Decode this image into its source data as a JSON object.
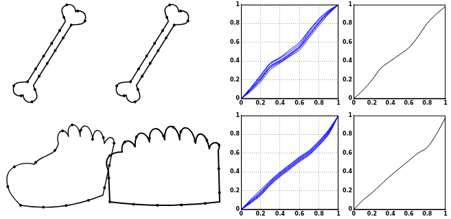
{
  "chart_data": [
    {
      "type": "line",
      "x": [
        0,
        0.1,
        0.2,
        0.3,
        0.4,
        0.5,
        0.6,
        0.7,
        0.8,
        0.9,
        1
      ],
      "series": [
        {
          "color": "#0000ff",
          "values": [
            0,
            0.1,
            0.22,
            0.35,
            0.41,
            0.48,
            0.56,
            0.7,
            0.82,
            0.92,
            1
          ]
        },
        {
          "color": "#0000ff",
          "values": [
            0,
            0.09,
            0.2,
            0.33,
            0.39,
            0.46,
            0.54,
            0.67,
            0.8,
            0.91,
            1
          ]
        },
        {
          "color": "#0000ff",
          "values": [
            0,
            0.11,
            0.24,
            0.37,
            0.43,
            0.5,
            0.58,
            0.72,
            0.84,
            0.93,
            1
          ]
        },
        {
          "color": "#0000ff",
          "values": [
            0,
            0.08,
            0.18,
            0.31,
            0.38,
            0.45,
            0.52,
            0.65,
            0.78,
            0.9,
            1
          ]
        },
        {
          "color": "#0000ff",
          "values": [
            0,
            0.1,
            0.21,
            0.34,
            0.4,
            0.47,
            0.55,
            0.68,
            0.81,
            0.92,
            1
          ]
        },
        {
          "color": "#0000ff",
          "values": [
            0,
            0.12,
            0.25,
            0.38,
            0.44,
            0.52,
            0.6,
            0.73,
            0.85,
            0.94,
            1
          ]
        }
      ],
      "xlim": [
        0,
        1
      ],
      "ylim": [
        0,
        1
      ],
      "xticks": [
        0,
        0.2,
        0.4,
        0.6,
        0.8,
        1
      ],
      "yticks": [
        0,
        0.2,
        0.4,
        0.6,
        0.8,
        1
      ],
      "grid": true
    },
    {
      "type": "line",
      "x": [
        0,
        0.1,
        0.2,
        0.3,
        0.4,
        0.5,
        0.6,
        0.7,
        0.8,
        0.9,
        1
      ],
      "series": [
        {
          "color": "#000000",
          "values": [
            0,
            0.09,
            0.2,
            0.33,
            0.4,
            0.47,
            0.54,
            0.66,
            0.8,
            0.9,
            0.98
          ]
        }
      ],
      "xlim": [
        0,
        1
      ],
      "ylim": [
        0,
        1
      ],
      "xticks": [
        0,
        0.2,
        0.4,
        0.6,
        0.8,
        1
      ],
      "yticks": [
        0,
        0.2,
        0.4,
        0.6,
        0.8,
        1
      ],
      "grid": false
    },
    {
      "type": "line",
      "x": [
        0,
        0.1,
        0.2,
        0.3,
        0.4,
        0.5,
        0.6,
        0.7,
        0.8,
        0.9,
        1
      ],
      "series": [
        {
          "color": "#0000ff",
          "values": [
            0,
            0.08,
            0.17,
            0.28,
            0.37,
            0.45,
            0.53,
            0.6,
            0.7,
            0.82,
            1
          ]
        },
        {
          "color": "#0000ff",
          "values": [
            0,
            0.1,
            0.19,
            0.3,
            0.39,
            0.47,
            0.55,
            0.62,
            0.72,
            0.84,
            1
          ]
        },
        {
          "color": "#0000ff",
          "values": [
            0,
            0.07,
            0.15,
            0.26,
            0.35,
            0.43,
            0.51,
            0.58,
            0.68,
            0.8,
            1
          ]
        },
        {
          "color": "#0000ff",
          "values": [
            0,
            0.09,
            0.18,
            0.29,
            0.38,
            0.46,
            0.54,
            0.61,
            0.71,
            0.83,
            1
          ]
        },
        {
          "color": "#0000ff",
          "values": [
            0,
            0.11,
            0.21,
            0.31,
            0.4,
            0.48,
            0.56,
            0.63,
            0.73,
            0.85,
            1
          ]
        },
        {
          "color": "#0000ff",
          "values": [
            0,
            0.08,
            0.16,
            0.27,
            0.36,
            0.44,
            0.52,
            0.59,
            0.69,
            0.81,
            1
          ]
        }
      ],
      "xlim": [
        0,
        1
      ],
      "ylim": [
        0,
        1
      ],
      "xticks": [
        0,
        0.2,
        0.4,
        0.6,
        0.8,
        1
      ],
      "yticks": [
        0,
        0.2,
        0.4,
        0.6,
        0.8,
        1
      ],
      "grid": true
    },
    {
      "type": "line",
      "x": [
        0,
        0.1,
        0.2,
        0.3,
        0.4,
        0.5,
        0.6,
        0.7,
        0.8,
        0.9,
        1
      ],
      "series": [
        {
          "color": "#000000",
          "values": [
            0,
            0.1,
            0.18,
            0.27,
            0.36,
            0.44,
            0.52,
            0.6,
            0.66,
            0.8,
            0.98
          ]
        }
      ],
      "xlim": [
        0,
        1
      ],
      "ylim": [
        0,
        1
      ],
      "xticks": [
        0,
        0.2,
        0.4,
        0.6,
        0.8,
        1
      ],
      "yticks": [
        0,
        0.2,
        0.4,
        0.6,
        0.8,
        1
      ],
      "grid": false
    }
  ]
}
